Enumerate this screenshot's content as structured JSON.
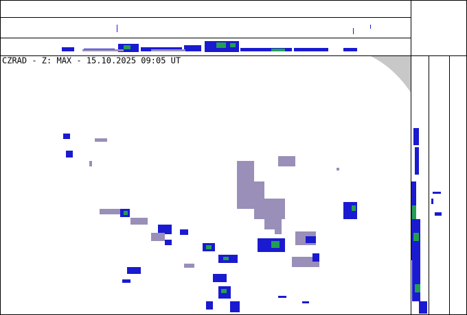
{
  "header": {
    "title": "CZRAD - Z: MAX - 15.10.2025 09:05 UT"
  }
}
